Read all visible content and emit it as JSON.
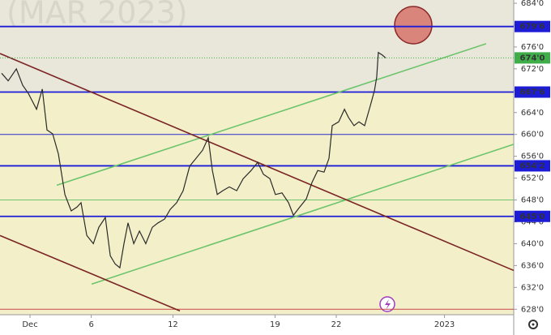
{
  "chart_data": {
    "type": "line",
    "title": "(MAR 2023)",
    "x": [
      -1.39,
      -1.07,
      -0.67,
      -0.36,
      -0.08,
      0.32,
      0.6,
      0.83,
      1.11,
      1.39,
      1.71,
      2.02,
      2.3,
      2.5,
      2.78,
      3.1,
      3.37,
      3.69,
      3.93,
      4.17,
      4.4,
      4.6,
      4.8,
      5.08,
      5.36,
      5.67,
      5.99,
      6.27,
      6.59,
      6.87,
      7.18,
      7.5,
      7.82,
      8.13,
      8.45,
      8.73,
      8.93,
      9.17,
      9.44,
      9.76,
      10.12,
      10.44,
      10.83,
      11.15,
      11.43,
      11.75,
      12.02,
      12.34,
      12.66,
      12.9,
      13.21,
      13.53,
      13.81,
      14.09,
      14.4,
      14.64,
      14.8,
      15.12,
      15.4,
      15.6,
      15.87,
      16.11,
      16.39,
      16.67,
      16.87,
      16.98,
      17.06,
      17.26,
      17.42
    ],
    "values": [
      671.2,
      669.8,
      672.0,
      669.0,
      667.5,
      664.6,
      668.3,
      660.8,
      660.1,
      656.4,
      649.0,
      646.0,
      646.7,
      647.5,
      641.5,
      640.0,
      643.0,
      644.8,
      637.8,
      636.3,
      635.6,
      640.0,
      643.8,
      640.0,
      642.3,
      640.0,
      643.0,
      643.8,
      644.5,
      646.3,
      647.5,
      649.7,
      654.2,
      655.6,
      657.1,
      659.4,
      653.4,
      649.0,
      649.7,
      650.4,
      649.7,
      651.9,
      653.4,
      654.9,
      652.7,
      651.9,
      649.0,
      649.3,
      647.5,
      645.2,
      646.7,
      648.2,
      651.2,
      653.4,
      653.1,
      655.6,
      661.6,
      662.3,
      664.6,
      663.1,
      661.6,
      662.3,
      661.6,
      665.3,
      668.0,
      670.5,
      675.0,
      674.5,
      674.0
    ],
    "color": "#2a2a2a",
    "xlim": [
      -1.47,
      23.69
    ],
    "ylim": [
      627,
      684.6
    ],
    "xticks": [
      {
        "value": 0,
        "label": "Dec"
      },
      {
        "value": 3,
        "label": "6"
      },
      {
        "value": 7,
        "label": "12"
      },
      {
        "value": 12,
        "label": "19"
      },
      {
        "value": 15,
        "label": "22"
      },
      {
        "value": 20.3,
        "label": "2023"
      }
    ],
    "yticks": [
      {
        "value": 628,
        "label": "628'0"
      },
      {
        "value": 632,
        "label": "632'0"
      },
      {
        "value": 636,
        "label": "636'0"
      },
      {
        "value": 640,
        "label": "640'0"
      },
      {
        "value": 644,
        "label": "644'0"
      },
      {
        "value": 648,
        "label": "648'0"
      },
      {
        "value": 652,
        "label": "652'0"
      },
      {
        "value": 656,
        "label": "656'0"
      },
      {
        "value": 660,
        "label": "660'0"
      },
      {
        "value": 664,
        "label": "664'0"
      },
      {
        "value": 668,
        "label": "668'0"
      },
      {
        "value": 672,
        "label": "672'0"
      },
      {
        "value": 676,
        "label": "676'0"
      },
      {
        "value": 680,
        "label": "680'0"
      },
      {
        "value": 684,
        "label": "684'0"
      }
    ],
    "levels": [
      {
        "value": 679.75,
        "label": "679'6",
        "color": "#1c1cd6"
      },
      {
        "value": 667.75,
        "label": "667'6",
        "color": "#1c1cd6"
      },
      {
        "value": 660,
        "color": "#2b2bd0"
      },
      {
        "value": 654.25,
        "label": "654'2",
        "color": "#1c1cd6"
      },
      {
        "value": 648,
        "color": "#6fc46f"
      },
      {
        "value": 645,
        "label": "645'0",
        "color": "#1c1cd6"
      },
      {
        "value": 628,
        "color": "#c84848"
      }
    ],
    "last_price": {
      "value": 674,
      "label": "674'0",
      "color": "#3fae49"
    },
    "trendlines": [
      {
        "x": [
          1.31,
          22.34
        ],
        "y": [
          650.7,
          676.6
        ],
        "color": "#6cc46c"
      },
      {
        "x": [
          3.02,
          23.69
        ],
        "y": [
          632.6,
          658.2
        ],
        "color": "#6cc46c"
      },
      {
        "x": [
          -1.47,
          23.69
        ],
        "y": [
          674.8,
          635.1
        ],
        "color": "#7a2424"
      },
      {
        "x": [
          -1.47,
          7.34
        ],
        "y": [
          641.5,
          627.7
        ],
        "color": "#7a2424"
      }
    ]
  }
}
